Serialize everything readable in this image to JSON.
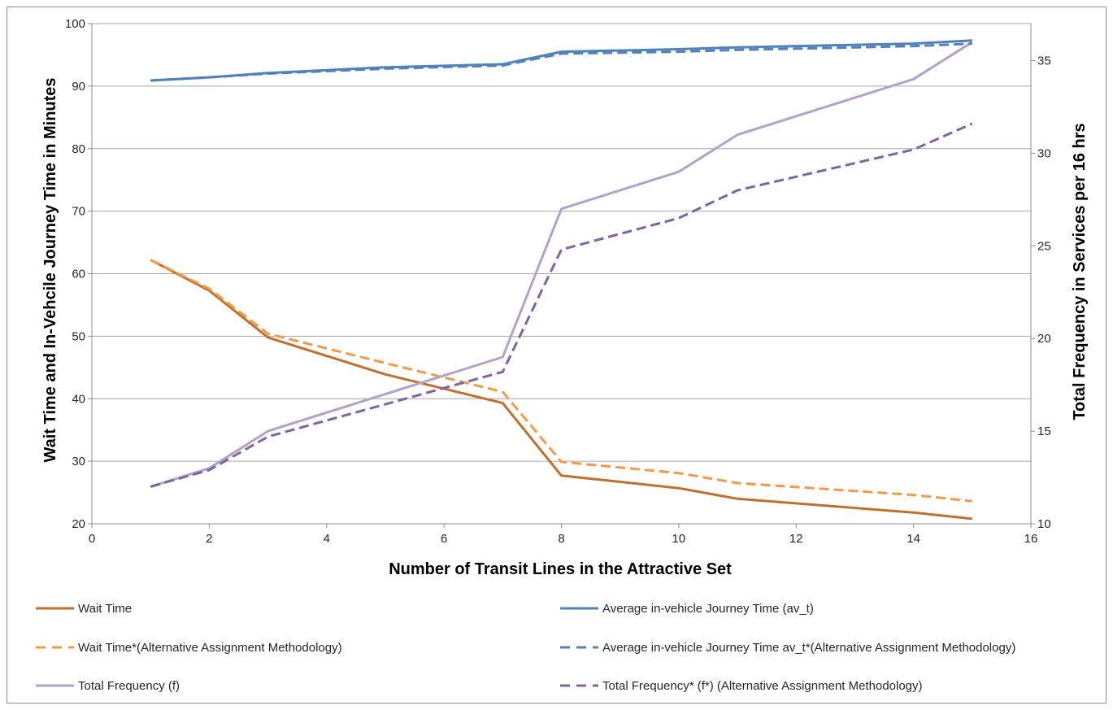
{
  "chart_data": {
    "type": "line",
    "title": "",
    "xlabel": "Number of Transit Lines in the Attractive Set",
    "ylabel": "Wait Time and In-Vehcile Journey Time in Minutes",
    "y2label": "Total Frequency in Services per 16 hrs",
    "xlim": [
      0,
      16
    ],
    "ylim": [
      20,
      100
    ],
    "y2lim": [
      10,
      37
    ],
    "x_ticks": [
      0,
      2,
      4,
      6,
      8,
      10,
      12,
      14,
      16
    ],
    "y_ticks": [
      20,
      30,
      40,
      50,
      60,
      70,
      80,
      90,
      100
    ],
    "y2_ticks": [
      10,
      15,
      20,
      25,
      30,
      35
    ],
    "grid": "horizontal",
    "legend_position": "bottom",
    "series": [
      {
        "name": "Wait Time",
        "axis": "left",
        "color": "#c0702e",
        "dash": "solid",
        "x": [
          1,
          2,
          3,
          5,
          7,
          8,
          10,
          11,
          14,
          15
        ],
        "y": [
          62.2,
          57.3,
          49.8,
          43.9,
          39.3,
          27.7,
          25.7,
          24.0,
          21.8,
          20.8
        ]
      },
      {
        "name": "Wait Time*(Alternative Assignment Methodology)",
        "axis": "left",
        "color": "#f39a4a",
        "dash": "dashed",
        "x": [
          1,
          2,
          3,
          5,
          7,
          8,
          10,
          11,
          14,
          15
        ],
        "y": [
          62.2,
          57.6,
          50.4,
          45.7,
          41.1,
          29.9,
          28.1,
          26.5,
          24.6,
          23.6
        ]
      },
      {
        "name": "Total Frequency (f)",
        "axis": "right",
        "color": "#b3a2c7",
        "dash": "solid",
        "x": [
          1,
          2,
          3,
          7,
          8,
          10,
          11,
          14,
          15
        ],
        "y": [
          12.0,
          13.0,
          15.0,
          19.0,
          27.0,
          29.0,
          31.0,
          34.0,
          36.0
        ]
      },
      {
        "name": "Total Frequency* (f*) (Alternative Assignment Methodology)",
        "axis": "right",
        "color": "#8064a2",
        "dash": "dashed",
        "x": [
          1,
          2,
          3,
          7,
          8,
          10,
          11,
          14,
          15
        ],
        "y": [
          12.0,
          12.9,
          14.7,
          18.2,
          24.8,
          26.5,
          28.0,
          30.2,
          31.6
        ]
      },
      {
        "name": "Average in-vehicle Journey Time (av_t)",
        "axis": "left",
        "color": "#4f81bd",
        "dash": "solid",
        "x": [
          1,
          2,
          3,
          5,
          7,
          8,
          10,
          11,
          14,
          15
        ],
        "y": [
          90.9,
          91.4,
          92.1,
          93.0,
          93.5,
          95.5,
          95.9,
          96.2,
          96.8,
          97.3
        ]
      },
      {
        "name": "Average in-vehicle Journey Time av_t*(Alternative Assignment Methodology)",
        "axis": "left",
        "color": "#4f81bd",
        "dash": "dashed",
        "x": [
          1,
          2,
          3,
          5,
          7,
          8,
          10,
          11,
          14,
          15
        ],
        "y": [
          90.9,
          91.4,
          92.0,
          92.8,
          93.3,
          95.2,
          95.5,
          95.8,
          96.4,
          96.8
        ]
      }
    ]
  },
  "legend": {
    "items": [
      {
        "label": "Wait Time",
        "color": "#c0702e",
        "dash": "solid"
      },
      {
        "label": "Average in-vehicle Journey Time (av_t)",
        "color": "#4f81bd",
        "dash": "solid"
      },
      {
        "label": "Wait Time*(Alternative Assignment Methodology)",
        "color": "#f39a4a",
        "dash": "dashed"
      },
      {
        "label": "Average in-vehicle Journey Time av_t*(Alternative Assignment Methodology)",
        "color": "#4f81bd",
        "dash": "dashed"
      },
      {
        "label": "Total Frequency (f)",
        "color": "#b3a2c7",
        "dash": "solid"
      },
      {
        "label": "Total Frequency* (f*) (Alternative Assignment Methodology)",
        "color": "#8064a2",
        "dash": "dashed"
      }
    ]
  },
  "colors": {
    "gridline": "#a6a6a6",
    "axis": "#8c8c8c",
    "text": "#262626"
  }
}
